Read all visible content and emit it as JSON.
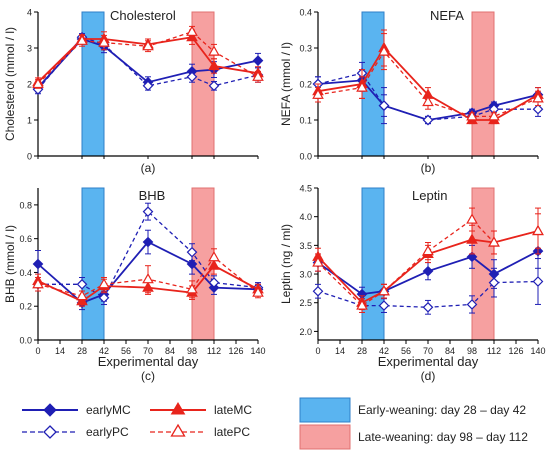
{
  "colors": {
    "early": "#1f1fb4",
    "late": "#e8241c",
    "early_window_fill": "#5ab4f0",
    "early_window_stroke": "#2f7fc8",
    "late_window_fill": "#f6a0a0",
    "late_window_stroke": "#e07070"
  },
  "chart_data": [
    {
      "id": "cholesterol",
      "type": "line",
      "title": "Cholesterol",
      "panel_label": "(a)",
      "ylabel": "Cholesterol (mmol / l)",
      "xlabel": "",
      "ylim": [
        0,
        4
      ],
      "yticks": [
        0,
        1,
        2,
        3,
        4
      ],
      "ytick_labels": [
        "0",
        "1",
        "2",
        "3",
        "4"
      ],
      "xlim": [
        0,
        140
      ],
      "xticks": [],
      "x": [
        0,
        28,
        42,
        70,
        98,
        112,
        140
      ],
      "shaded": [
        [
          28,
          42
        ],
        [
          98,
          112
        ]
      ],
      "series": [
        {
          "name": "earlyMC",
          "group": "early",
          "style": "solid",
          "marker": "diamond-filled",
          "values": [
            1.9,
            3.25,
            3.05,
            2.05,
            2.35,
            2.4,
            2.65
          ],
          "err": [
            0.12,
            0.12,
            0.18,
            0.15,
            0.2,
            0.22,
            0.2
          ]
        },
        {
          "name": "earlyPC",
          "group": "early",
          "style": "dashed",
          "marker": "diamond-open",
          "values": [
            1.85,
            3.3,
            3.1,
            1.95,
            2.2,
            1.95,
            2.25
          ],
          "err": [
            0.12,
            0.1,
            0.15,
            0.12,
            0.15,
            0.12,
            0.2
          ]
        },
        {
          "name": "lateMC",
          "group": "late",
          "style": "solid",
          "marker": "triangle-filled",
          "values": [
            2.05,
            3.25,
            3.25,
            3.1,
            3.3,
            2.5,
            2.3
          ],
          "err": [
            0.12,
            0.12,
            0.2,
            0.15,
            0.2,
            0.2,
            0.18
          ]
        },
        {
          "name": "latePC",
          "group": "late",
          "style": "dashed",
          "marker": "triangle-open",
          "values": [
            2.0,
            3.2,
            3.15,
            3.05,
            3.45,
            2.9,
            2.2
          ],
          "err": [
            0.12,
            0.15,
            0.2,
            0.15,
            0.15,
            0.2,
            0.15
          ]
        }
      ]
    },
    {
      "id": "nefa",
      "type": "line",
      "title": "NEFA",
      "panel_label": "(b)",
      "ylabel": "NEFA (mmol / l)",
      "xlabel": "",
      "ylim": [
        0,
        0.4
      ],
      "yticks": [
        0,
        0.1,
        0.2,
        0.3,
        0.4
      ],
      "ytick_labels": [
        "0.0",
        "0.1",
        "0.2",
        "0.3",
        "0.4"
      ],
      "xlim": [
        0,
        140
      ],
      "xticks": [],
      "x": [
        0,
        28,
        42,
        70,
        98,
        112,
        140
      ],
      "shaded": [
        [
          28,
          42
        ],
        [
          98,
          112
        ]
      ],
      "series": [
        {
          "name": "earlyMC",
          "group": "early",
          "style": "solid",
          "marker": "diamond-filled",
          "values": [
            0.2,
            0.21,
            0.14,
            0.1,
            0.12,
            0.14,
            0.17
          ],
          "err": [
            0.02,
            0.03,
            0.05,
            0.01,
            0.01,
            0.01,
            0.02
          ]
        },
        {
          "name": "earlyPC",
          "group": "early",
          "style": "dashed",
          "marker": "diamond-open",
          "values": [
            0.2,
            0.23,
            0.14,
            0.1,
            0.11,
            0.13,
            0.13
          ],
          "err": [
            0.02,
            0.03,
            0.03,
            0.01,
            0.01,
            0.01,
            0.02
          ]
        },
        {
          "name": "lateMC",
          "group": "late",
          "style": "solid",
          "marker": "triangle-filled",
          "values": [
            0.18,
            0.2,
            0.3,
            0.17,
            0.1,
            0.1,
            0.17
          ],
          "err": [
            0.02,
            0.04,
            0.05,
            0.02,
            0.01,
            0.01,
            0.02
          ]
        },
        {
          "name": "latePC",
          "group": "late",
          "style": "dashed",
          "marker": "triangle-open",
          "values": [
            0.17,
            0.19,
            0.29,
            0.15,
            0.11,
            0.11,
            0.16
          ],
          "err": [
            0.02,
            0.03,
            0.05,
            0.02,
            0.01,
            0.01,
            0.02
          ]
        }
      ]
    },
    {
      "id": "bhb",
      "type": "line",
      "title": "BHB",
      "panel_label": "(c)",
      "ylabel": "BHB (mmol / l)",
      "xlabel": "Experimental day",
      "ylim": [
        0,
        0.9
      ],
      "yticks": [
        0,
        0.2,
        0.4,
        0.6,
        0.8
      ],
      "ytick_labels": [
        "0.0",
        "0.2",
        "0.4",
        "0.6",
        "0.8"
      ],
      "xlim": [
        0,
        140
      ],
      "xticks": [
        0,
        14,
        28,
        42,
        56,
        70,
        84,
        98,
        112,
        126,
        140
      ],
      "x": [
        0,
        28,
        42,
        70,
        98,
        112,
        140
      ],
      "shaded": [
        [
          28,
          42
        ],
        [
          98,
          112
        ]
      ],
      "series": [
        {
          "name": "earlyMC",
          "group": "early",
          "style": "solid",
          "marker": "diamond-filled",
          "values": [
            0.45,
            0.22,
            0.27,
            0.58,
            0.45,
            0.31,
            0.3
          ],
          "err": [
            0.08,
            0.04,
            0.04,
            0.07,
            0.06,
            0.04,
            0.03
          ]
        },
        {
          "name": "earlyPC",
          "group": "early",
          "style": "dashed",
          "marker": "diamond-open",
          "values": [
            0.33,
            0.33,
            0.25,
            0.76,
            0.52,
            0.34,
            0.31
          ],
          "err": [
            0.04,
            0.04,
            0.04,
            0.05,
            0.05,
            0.04,
            0.03
          ]
        },
        {
          "name": "lateMC",
          "group": "late",
          "style": "solid",
          "marker": "triangle-filled",
          "values": [
            0.35,
            0.23,
            0.32,
            0.31,
            0.28,
            0.44,
            0.3
          ],
          "err": [
            0.04,
            0.03,
            0.04,
            0.04,
            0.04,
            0.05,
            0.03
          ]
        },
        {
          "name": "latePC",
          "group": "late",
          "style": "dashed",
          "marker": "triangle-open",
          "values": [
            0.33,
            0.26,
            0.33,
            0.36,
            0.3,
            0.49,
            0.28
          ],
          "err": [
            0.04,
            0.03,
            0.04,
            0.08,
            0.05,
            0.05,
            0.03
          ]
        }
      ]
    },
    {
      "id": "leptin",
      "type": "line",
      "title": "Leptin",
      "panel_label": "(d)",
      "ylabel": "Leptin (ng / ml)",
      "xlabel": "Experimental day",
      "ylim": [
        1.85,
        4.5
      ],
      "yticks": [
        2.0,
        2.5,
        3.0,
        3.5,
        4.0,
        4.5
      ],
      "ytick_labels": [
        "2.0",
        "2.5",
        "3.0",
        "3.5",
        "4.0",
        "4.5"
      ],
      "xlim": [
        0,
        140
      ],
      "xticks": [
        0,
        14,
        28,
        42,
        56,
        70,
        84,
        98,
        112,
        126,
        140
      ],
      "x": [
        0,
        28,
        42,
        70,
        98,
        112,
        140
      ],
      "shaded": [
        [
          28,
          42
        ],
        [
          98,
          112
        ]
      ],
      "series": [
        {
          "name": "earlyMC",
          "group": "early",
          "style": "solid",
          "marker": "diamond-filled",
          "values": [
            3.2,
            2.65,
            2.7,
            3.05,
            3.3,
            3.0,
            3.4
          ],
          "err": [
            0.15,
            0.12,
            0.12,
            0.15,
            0.2,
            0.25,
            0.3
          ]
        },
        {
          "name": "earlyPC",
          "group": "early",
          "style": "dashed",
          "marker": "diamond-open",
          "values": [
            2.7,
            2.45,
            2.45,
            2.42,
            2.47,
            2.85,
            2.87
          ],
          "err": [
            0.12,
            0.12,
            0.12,
            0.12,
            0.15,
            0.25,
            0.4
          ]
        },
        {
          "name": "lateMC",
          "group": "late",
          "style": "solid",
          "marker": "triangle-filled",
          "values": [
            3.3,
            2.5,
            2.7,
            3.35,
            3.6,
            3.55,
            3.75
          ],
          "err": [
            0.15,
            0.12,
            0.12,
            0.15,
            0.25,
            0.2,
            0.4
          ]
        },
        {
          "name": "latePC",
          "group": "late",
          "style": "dashed",
          "marker": "triangle-open",
          "values": [
            3.2,
            2.45,
            2.7,
            3.4,
            3.95,
            3.55,
            3.75
          ],
          "err": [
            0.15,
            0.12,
            0.12,
            0.15,
            0.2,
            0.2,
            0.3
          ]
        }
      ]
    }
  ],
  "legend": {
    "items": [
      {
        "label": "earlyMC",
        "group": "early",
        "style": "solid",
        "marker": "diamond-filled"
      },
      {
        "label": "lateMC",
        "group": "late",
        "style": "solid",
        "marker": "triangle-filled"
      },
      {
        "label": "earlyPC",
        "group": "early",
        "style": "dashed",
        "marker": "diamond-open"
      },
      {
        "label": "latePC",
        "group": "late",
        "style": "dashed",
        "marker": "triangle-open"
      }
    ],
    "windows": [
      {
        "label": "Early-weaning: day 28 – day 42",
        "group": "early"
      },
      {
        "label": "Late-weaning: day 98 – day 112",
        "group": "late"
      }
    ]
  }
}
